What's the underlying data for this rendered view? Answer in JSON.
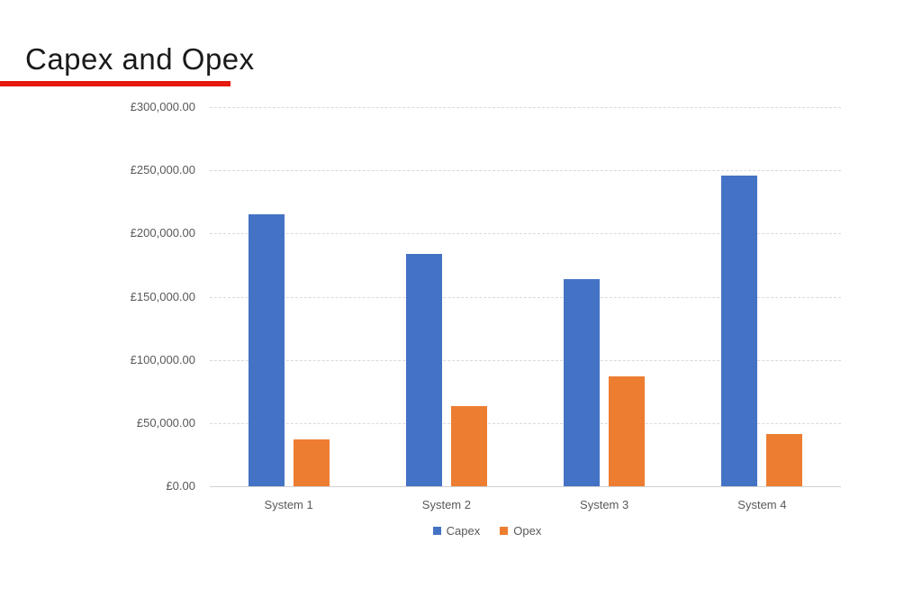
{
  "slide": {
    "title": "Capex and Opex",
    "accent_color": "#e5190e",
    "background_color": "#ffffff"
  },
  "chart_data": {
    "type": "bar",
    "title": "",
    "categories": [
      "System 1",
      "System 2",
      "System 3",
      "System 4"
    ],
    "series": [
      {
        "name": "Capex",
        "color": "#4472C4",
        "values": [
          215000,
          184000,
          164000,
          246000
        ]
      },
      {
        "name": "Opex",
        "color": "#ED7D31",
        "values": [
          37000,
          63500,
          87000,
          41000
        ]
      }
    ],
    "ylim": [
      0,
      300000
    ],
    "ytick_step": 50000,
    "yticks": [
      {
        "value": 300000,
        "label": "£300,000.00"
      },
      {
        "value": 250000,
        "label": "£250,000.00"
      },
      {
        "value": 200000,
        "label": "£200,000.00"
      },
      {
        "value": 150000,
        "label": "£150,000.00"
      },
      {
        "value": 100000,
        "label": "£100,000.00"
      },
      {
        "value": 50000,
        "label": "£50,000.00"
      },
      {
        "value": 0,
        "label": "£0.00"
      }
    ],
    "grid": true,
    "gridline_color": "#d9d9d9",
    "axis_text_color": "#595959",
    "legend_position": "bottom",
    "legend": [
      {
        "name": "Capex",
        "color": "#4472C4"
      },
      {
        "name": "Opex",
        "color": "#ED7D31"
      }
    ]
  }
}
